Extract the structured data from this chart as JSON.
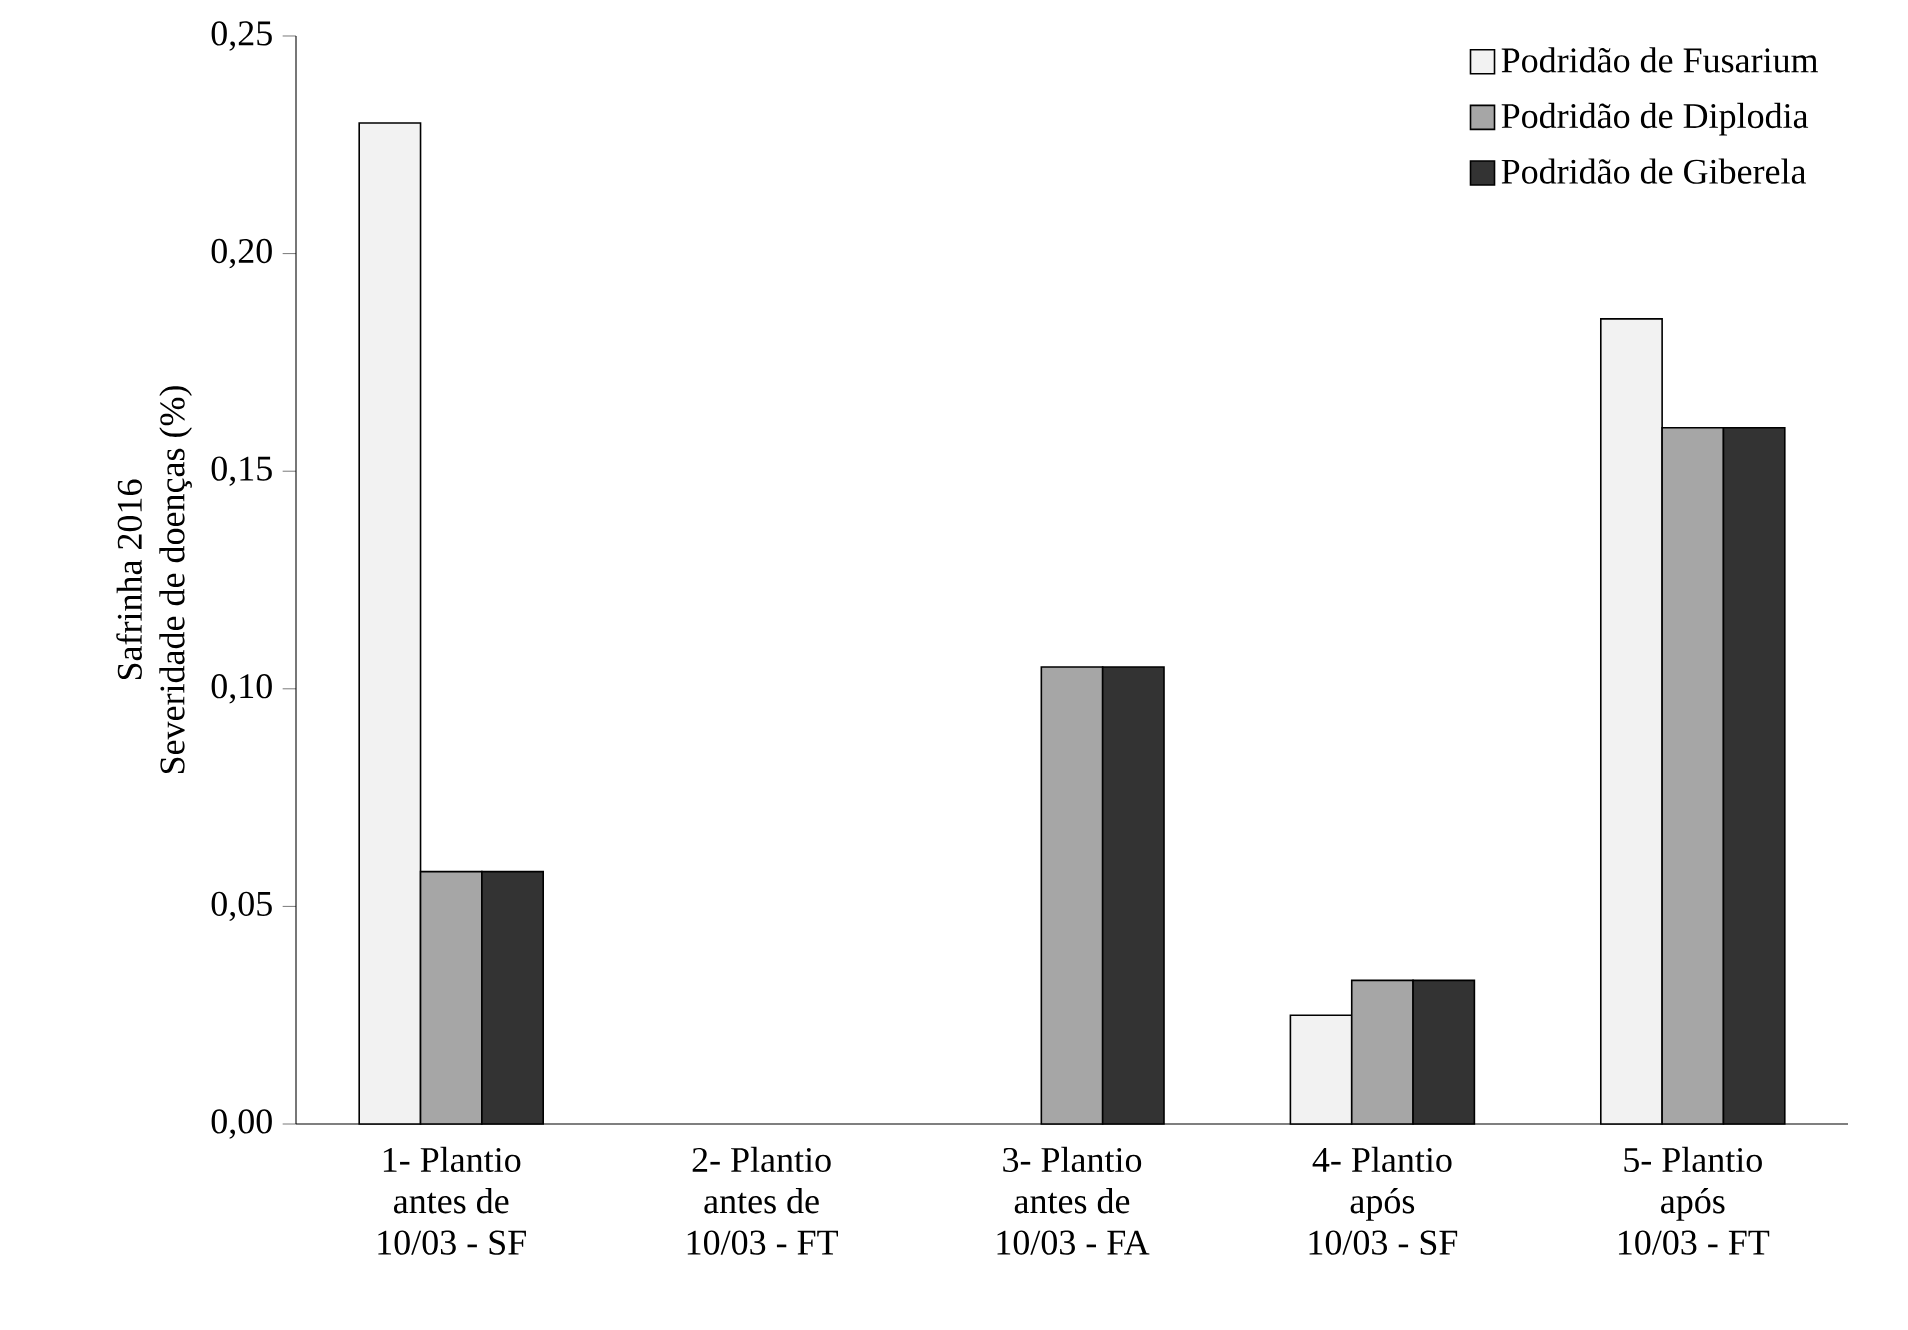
{
  "chart_data": {
    "type": "bar",
    "ylabel": "Safrinha 2016\nSeveridade de doenças (%)",
    "categories": [
      "1- Plantio\nantes de\n10/03 - SF",
      "2- Plantio\nantes de\n10/03 - FT",
      "3- Plantio\nantes de\n10/03 - FA",
      "4- Plantio\napós\n10/03 - SF",
      "5- Plantio\napós\n10/03 - FT"
    ],
    "series": [
      {
        "name": "Podridão de Fusarium",
        "color": "#f2f2f2",
        "values": [
          0.23,
          null,
          null,
          0.025,
          0.185
        ]
      },
      {
        "name": "Podridão de Diplodia",
        "color": "#a6a6a6",
        "values": [
          0.058,
          null,
          0.105,
          0.033,
          0.16
        ]
      },
      {
        "name": "Podridão de Giberela",
        "color": "#333333",
        "values": [
          0.058,
          null,
          0.105,
          0.033,
          0.16
        ]
      }
    ],
    "ylim": [
      0,
      0.25
    ],
    "yticks": [
      {
        "value": 0,
        "label": "0,00"
      },
      {
        "value": 0.05,
        "label": "0,05"
      },
      {
        "value": 0.1,
        "label": "0,10"
      },
      {
        "value": 0.15,
        "label": "0,15"
      },
      {
        "value": 0.2,
        "label": "0,20"
      },
      {
        "value": 0.25,
        "label": "0,25"
      }
    ],
    "legend": "top right",
    "grid": false
  }
}
